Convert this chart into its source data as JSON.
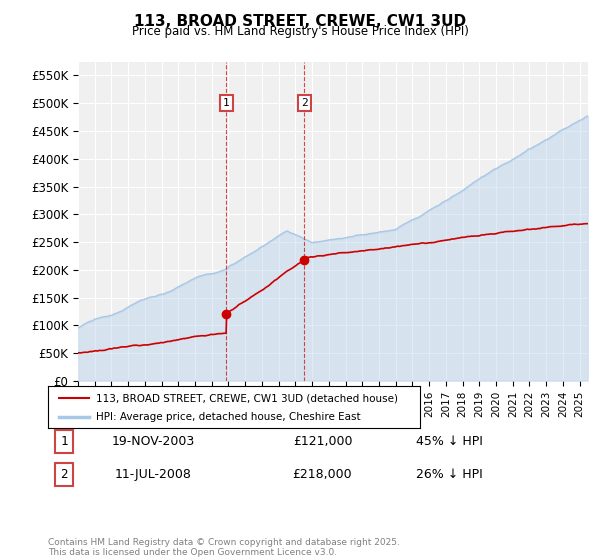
{
  "title": "113, BROAD STREET, CREWE, CW1 3UD",
  "subtitle": "Price paid vs. HM Land Registry's House Price Index (HPI)",
  "ylim": [
    0,
    575000
  ],
  "yticks": [
    0,
    50000,
    100000,
    150000,
    200000,
    250000,
    300000,
    350000,
    400000,
    450000,
    500000,
    550000
  ],
  "ytick_labels": [
    "£0",
    "£50K",
    "£100K",
    "£150K",
    "£200K",
    "£250K",
    "£300K",
    "£350K",
    "£400K",
    "£450K",
    "£500K",
    "£550K"
  ],
  "hpi_color": "#a8c8e8",
  "price_color": "#cc0000",
  "background_color": "#ffffff",
  "plot_bg_color": "#f0f0f0",
  "grid_color": "#ffffff",
  "transaction1_price": 121000,
  "transaction1_x": 2003.88,
  "transaction2_price": 218000,
  "transaction2_x": 2008.53,
  "legend_line1": "113, BROAD STREET, CREWE, CW1 3UD (detached house)",
  "legend_line2": "HPI: Average price, detached house, Cheshire East",
  "table_row1": [
    "1",
    "19-NOV-2003",
    "£121,000",
    "45% ↓ HPI"
  ],
  "table_row2": [
    "2",
    "11-JUL-2008",
    "£218,000",
    "26% ↓ HPI"
  ],
  "footnote": "Contains HM Land Registry data © Crown copyright and database right 2025.\nThis data is licensed under the Open Government Licence v3.0.",
  "xmin": 1995,
  "xmax": 2025.5
}
